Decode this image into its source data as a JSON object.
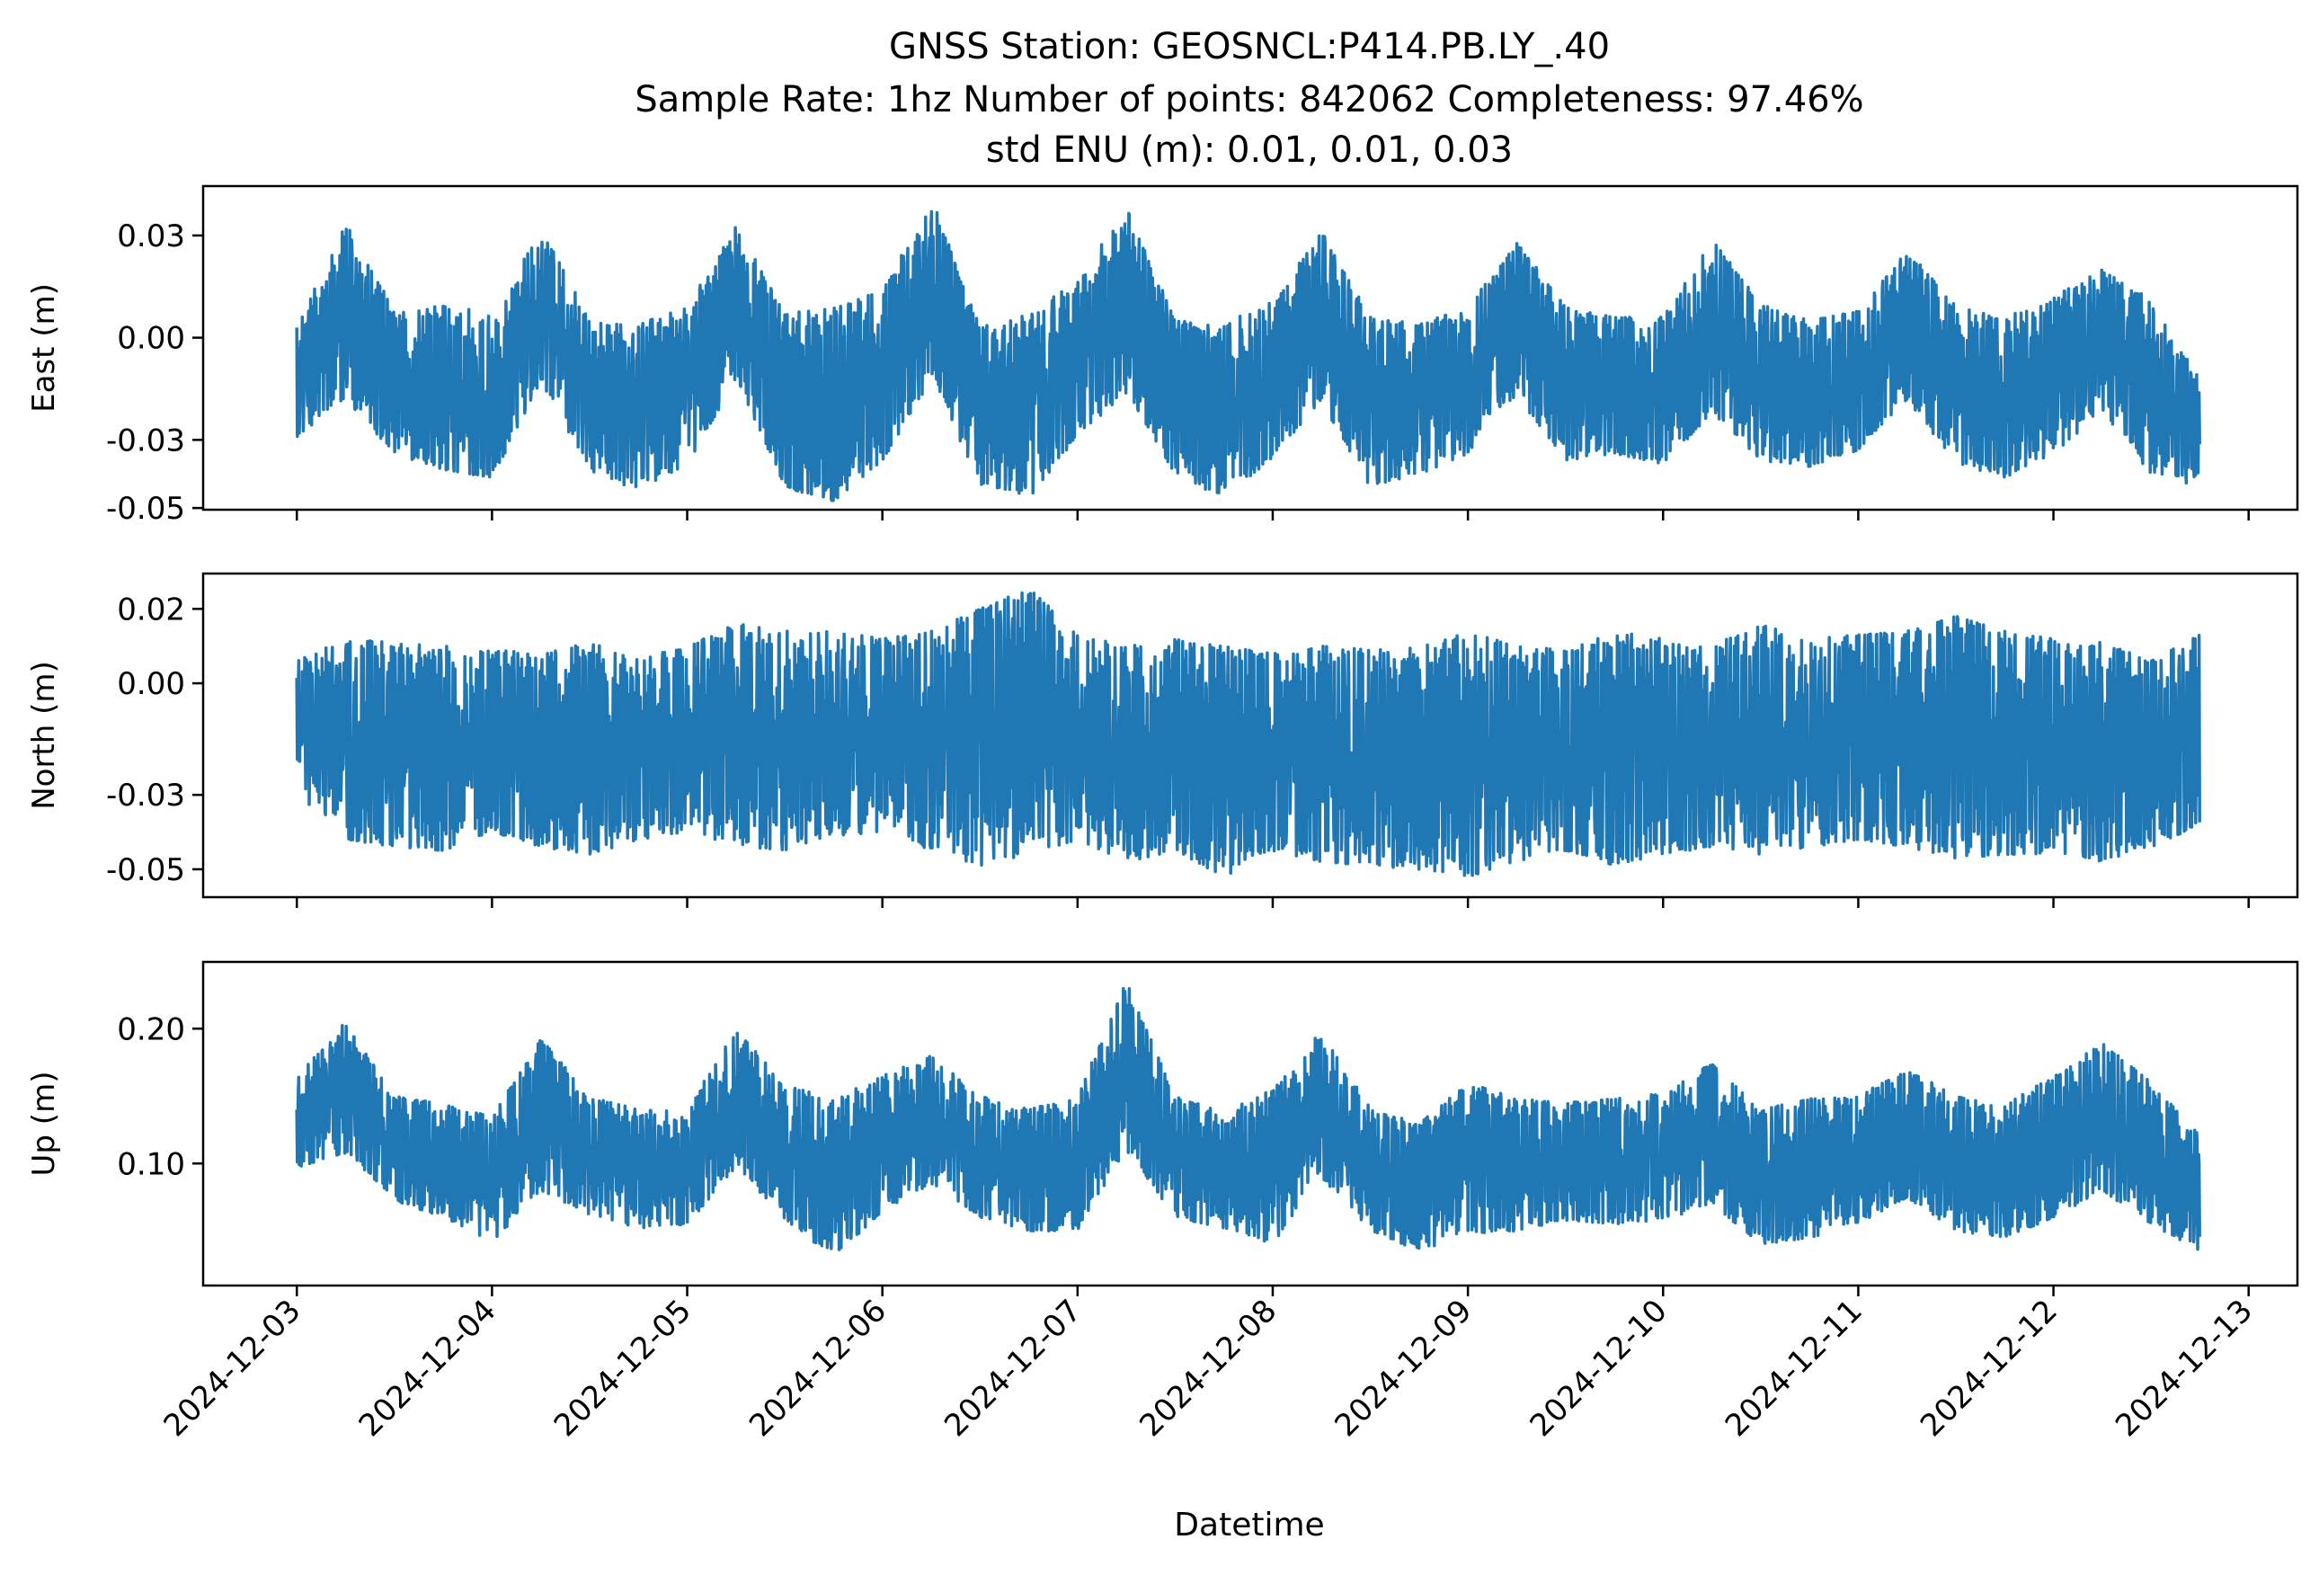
{
  "chart_data": {
    "type": "line",
    "title_lines": [
      "GNSS Station: GEOSNCL:P414.PB.LY_.40",
      "Sample Rate: 1hz   Number of points: 842062    Completeness:  97.46%",
      "std ENU (m):  0.01, 0.01, 0.03"
    ],
    "xlabel": "Datetime",
    "x_ticks": [
      "2024-12-03",
      "2024-12-04",
      "2024-12-05",
      "2024-12-06",
      "2024-12-07",
      "2024-12-08",
      "2024-12-09",
      "2024-12-10",
      "2024-12-11",
      "2024-12-12",
      "2024-12-13"
    ],
    "x_range_days": [
      -0.48,
      10.25
    ],
    "data_end_day": 9.75,
    "line_color": "#1f77b4",
    "panels": [
      {
        "name": "east",
        "ylabel": "East (m)",
        "ylim": [
          -0.0505,
          0.0445
        ],
        "yticks": [
          0.03,
          0.0,
          -0.03,
          -0.05
        ],
        "ytick_labels": [
          "0.03",
          "0.00",
          "-0.03",
          "-0.05"
        ],
        "envelope": [
          {
            "day": 0.0,
            "min": -0.029,
            "max": 0.003
          },
          {
            "day": 0.25,
            "min": -0.018,
            "max": 0.034
          },
          {
            "day": 0.5,
            "min": -0.034,
            "max": 0.008
          },
          {
            "day": 0.75,
            "min": -0.039,
            "max": 0.011
          },
          {
            "day": 1.0,
            "min": -0.041,
            "max": 0.006
          },
          {
            "day": 1.25,
            "min": -0.013,
            "max": 0.032
          },
          {
            "day": 1.5,
            "min": -0.039,
            "max": 0.005
          },
          {
            "day": 1.75,
            "min": -0.045,
            "max": 0.004
          },
          {
            "day": 2.0,
            "min": -0.037,
            "max": 0.009
          },
          {
            "day": 2.25,
            "min": -0.012,
            "max": 0.033
          },
          {
            "day": 2.5,
            "min": -0.044,
            "max": 0.007
          },
          {
            "day": 2.75,
            "min": -0.048,
            "max": 0.009
          },
          {
            "day": 3.0,
            "min": -0.036,
            "max": 0.014
          },
          {
            "day": 3.25,
            "min": -0.012,
            "max": 0.041
          },
          {
            "day": 3.5,
            "min": -0.043,
            "max": 0.003
          },
          {
            "day": 3.75,
            "min": -0.047,
            "max": 0.007
          },
          {
            "day": 4.0,
            "min": -0.029,
            "max": 0.017
          },
          {
            "day": 4.25,
            "min": -0.016,
            "max": 0.038
          },
          {
            "day": 4.5,
            "min": -0.04,
            "max": 0.005
          },
          {
            "day": 4.75,
            "min": -0.048,
            "max": 0.004
          },
          {
            "day": 5.0,
            "min": -0.035,
            "max": 0.011
          },
          {
            "day": 5.25,
            "min": -0.019,
            "max": 0.031
          },
          {
            "day": 5.5,
            "min": -0.044,
            "max": 0.006
          },
          {
            "day": 5.75,
            "min": -0.04,
            "max": 0.004
          },
          {
            "day": 6.0,
            "min": -0.034,
            "max": 0.009
          },
          {
            "day": 6.25,
            "min": -0.017,
            "max": 0.028
          },
          {
            "day": 6.5,
            "min": -0.036,
            "max": 0.009
          },
          {
            "day": 6.75,
            "min": -0.034,
            "max": 0.006
          },
          {
            "day": 7.0,
            "min": -0.037,
            "max": 0.006
          },
          {
            "day": 7.25,
            "min": -0.022,
            "max": 0.029
          },
          {
            "day": 7.5,
            "min": -0.036,
            "max": 0.01
          },
          {
            "day": 7.75,
            "min": -0.038,
            "max": 0.005
          },
          {
            "day": 8.0,
            "min": -0.033,
            "max": 0.008
          },
          {
            "day": 8.25,
            "min": -0.018,
            "max": 0.026
          },
          {
            "day": 8.5,
            "min": -0.037,
            "max": 0.009
          },
          {
            "day": 8.75,
            "min": -0.041,
            "max": 0.006
          },
          {
            "day": 9.0,
            "min": -0.034,
            "max": 0.012
          },
          {
            "day": 9.25,
            "min": -0.022,
            "max": 0.02
          },
          {
            "day": 9.5,
            "min": -0.04,
            "max": 0.011
          },
          {
            "day": 9.75,
            "min": -0.044,
            "max": -0.012
          }
        ]
      },
      {
        "name": "north",
        "ylabel": "North (m)",
        "ylim": [
          -0.0575,
          0.0295
        ],
        "yticks": [
          0.02,
          0.0,
          -0.03,
          -0.05
        ],
        "ytick_labels": [
          "0.02",
          "0.00",
          "-0.03",
          "-0.05"
        ],
        "envelope": [
          {
            "day": 0.0,
            "min": -0.03,
            "max": 0.006
          },
          {
            "day": 0.25,
            "min": -0.042,
            "max": 0.012
          },
          {
            "day": 0.5,
            "min": -0.044,
            "max": 0.011
          },
          {
            "day": 0.75,
            "min": -0.045,
            "max": 0.01
          },
          {
            "day": 1.0,
            "min": -0.04,
            "max": 0.009
          },
          {
            "day": 1.25,
            "min": -0.044,
            "max": 0.008
          },
          {
            "day": 1.5,
            "min": -0.046,
            "max": 0.011
          },
          {
            "day": 1.75,
            "min": -0.042,
            "max": 0.007
          },
          {
            "day": 2.0,
            "min": -0.04,
            "max": 0.01
          },
          {
            "day": 2.25,
            "min": -0.044,
            "max": 0.016
          },
          {
            "day": 2.5,
            "min": -0.045,
            "max": 0.014
          },
          {
            "day": 2.75,
            "min": -0.041,
            "max": 0.014
          },
          {
            "day": 3.0,
            "min": -0.04,
            "max": 0.012
          },
          {
            "day": 3.25,
            "min": -0.045,
            "max": 0.014
          },
          {
            "day": 3.5,
            "min": -0.049,
            "max": 0.02
          },
          {
            "day": 3.75,
            "min": -0.046,
            "max": 0.026
          },
          {
            "day": 4.0,
            "min": -0.042,
            "max": 0.013
          },
          {
            "day": 4.25,
            "min": -0.048,
            "max": 0.01
          },
          {
            "day": 4.5,
            "min": -0.045,
            "max": 0.012
          },
          {
            "day": 4.75,
            "min": -0.052,
            "max": 0.01
          },
          {
            "day": 5.0,
            "min": -0.045,
            "max": 0.008
          },
          {
            "day": 5.25,
            "min": -0.048,
            "max": 0.01
          },
          {
            "day": 5.5,
            "min": -0.049,
            "max": 0.009
          },
          {
            "day": 5.75,
            "min": -0.05,
            "max": 0.01
          },
          {
            "day": 6.0,
            "min": -0.052,
            "max": 0.014
          },
          {
            "day": 6.25,
            "min": -0.048,
            "max": 0.01
          },
          {
            "day": 6.5,
            "min": -0.045,
            "max": 0.009
          },
          {
            "day": 6.75,
            "min": -0.049,
            "max": 0.014
          },
          {
            "day": 7.0,
            "min": -0.046,
            "max": 0.012
          },
          {
            "day": 7.25,
            "min": -0.044,
            "max": 0.01
          },
          {
            "day": 7.5,
            "min": -0.046,
            "max": 0.016
          },
          {
            "day": 7.75,
            "min": -0.044,
            "max": 0.012
          },
          {
            "day": 8.0,
            "min": -0.042,
            "max": 0.013
          },
          {
            "day": 8.25,
            "min": -0.044,
            "max": 0.014
          },
          {
            "day": 8.5,
            "min": -0.047,
            "max": 0.018
          },
          {
            "day": 8.75,
            "min": -0.046,
            "max": 0.014
          },
          {
            "day": 9.0,
            "min": -0.046,
            "max": 0.012
          },
          {
            "day": 9.25,
            "min": -0.048,
            "max": 0.011
          },
          {
            "day": 9.5,
            "min": -0.044,
            "max": 0.006
          },
          {
            "day": 9.75,
            "min": -0.038,
            "max": 0.013
          }
        ]
      },
      {
        "name": "up",
        "ylabel": "Up (m)",
        "ylim": [
          0.0095,
          0.2495
        ],
        "yticks": [
          0.2,
          0.1
        ],
        "ytick_labels": [
          "0.20",
          "0.10"
        ],
        "envelope": [
          {
            "day": 0.0,
            "min": 0.097,
            "max": 0.165
          },
          {
            "day": 0.25,
            "min": 0.108,
            "max": 0.205
          },
          {
            "day": 0.5,
            "min": 0.072,
            "max": 0.15
          },
          {
            "day": 0.75,
            "min": 0.06,
            "max": 0.145
          },
          {
            "day": 1.0,
            "min": 0.042,
            "max": 0.135
          },
          {
            "day": 1.25,
            "min": 0.08,
            "max": 0.192
          },
          {
            "day": 1.5,
            "min": 0.062,
            "max": 0.15
          },
          {
            "day": 1.75,
            "min": 0.052,
            "max": 0.14
          },
          {
            "day": 2.0,
            "min": 0.055,
            "max": 0.14
          },
          {
            "day": 2.25,
            "min": 0.098,
            "max": 0.2
          },
          {
            "day": 2.5,
            "min": 0.058,
            "max": 0.158
          },
          {
            "day": 2.75,
            "min": 0.03,
            "max": 0.148
          },
          {
            "day": 3.0,
            "min": 0.065,
            "max": 0.165
          },
          {
            "day": 3.25,
            "min": 0.085,
            "max": 0.18
          },
          {
            "day": 3.5,
            "min": 0.06,
            "max": 0.15
          },
          {
            "day": 3.75,
            "min": 0.05,
            "max": 0.14
          },
          {
            "day": 4.0,
            "min": 0.05,
            "max": 0.15
          },
          {
            "day": 4.25,
            "min": 0.11,
            "max": 0.235
          },
          {
            "day": 4.5,
            "min": 0.06,
            "max": 0.15
          },
          {
            "day": 4.75,
            "min": 0.052,
            "max": 0.138
          },
          {
            "day": 5.0,
            "min": 0.04,
            "max": 0.155
          },
          {
            "day": 5.25,
            "min": 0.09,
            "max": 0.2
          },
          {
            "day": 5.5,
            "min": 0.05,
            "max": 0.14
          },
          {
            "day": 5.75,
            "min": 0.035,
            "max": 0.13
          },
          {
            "day": 6.0,
            "min": 0.048,
            "max": 0.16
          },
          {
            "day": 6.25,
            "min": 0.05,
            "max": 0.148
          },
          {
            "day": 6.5,
            "min": 0.058,
            "max": 0.145
          },
          {
            "day": 6.75,
            "min": 0.055,
            "max": 0.148
          },
          {
            "day": 7.0,
            "min": 0.058,
            "max": 0.152
          },
          {
            "day": 7.25,
            "min": 0.07,
            "max": 0.175
          },
          {
            "day": 7.5,
            "min": 0.04,
            "max": 0.14
          },
          {
            "day": 7.75,
            "min": 0.045,
            "max": 0.148
          },
          {
            "day": 8.0,
            "min": 0.055,
            "max": 0.15
          },
          {
            "day": 8.25,
            "min": 0.075,
            "max": 0.17
          },
          {
            "day": 8.5,
            "min": 0.05,
            "max": 0.15
          },
          {
            "day": 8.75,
            "min": 0.045,
            "max": 0.145
          },
          {
            "day": 9.0,
            "min": 0.06,
            "max": 0.165
          },
          {
            "day": 9.25,
            "min": 0.08,
            "max": 0.19
          },
          {
            "day": 9.5,
            "min": 0.055,
            "max": 0.16
          },
          {
            "day": 9.75,
            "min": 0.035,
            "max": 0.12
          }
        ]
      }
    ]
  }
}
